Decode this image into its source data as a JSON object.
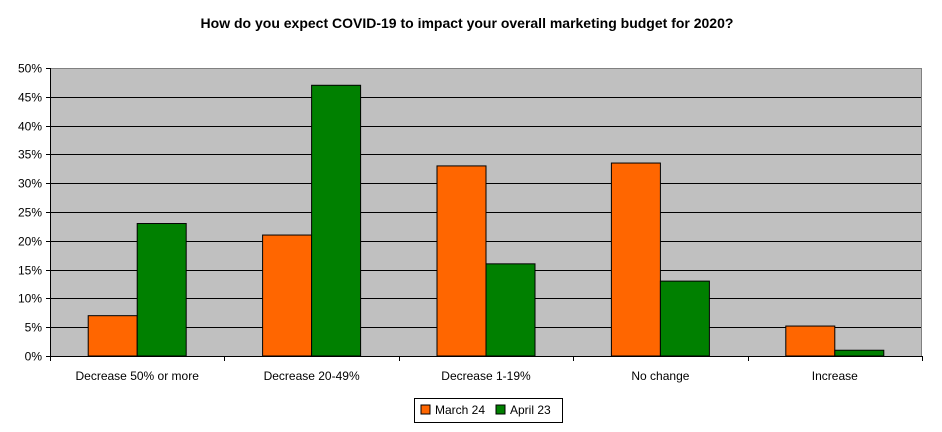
{
  "chart_data": {
    "type": "bar",
    "title": "How do you expect COVID-19 to impact your overall marketing budget for 2020?",
    "xlabel": "",
    "ylabel": "",
    "categories": [
      "Decrease 50% or more",
      "Decrease 20-49%",
      "Decrease 1-19%",
      "No change",
      "Increase"
    ],
    "series": [
      {
        "name": "March 24",
        "color": "#ff6600",
        "values": [
          7,
          21,
          33,
          33.5,
          5.2
        ]
      },
      {
        "name": "April 23",
        "color": "#008000",
        "values": [
          23,
          47,
          16,
          13,
          1
        ]
      }
    ],
    "ylim": [
      0,
      50
    ],
    "yticks": [
      0,
      5,
      10,
      15,
      20,
      25,
      30,
      35,
      40,
      45,
      50
    ],
    "ytick_labels": [
      "0%",
      "5%",
      "10%",
      "15%",
      "20%",
      "25%",
      "30%",
      "35%",
      "40%",
      "45%",
      "50%"
    ],
    "grid": true,
    "plot_background": "#c0c0c0",
    "legend_position": "bottom-center"
  }
}
